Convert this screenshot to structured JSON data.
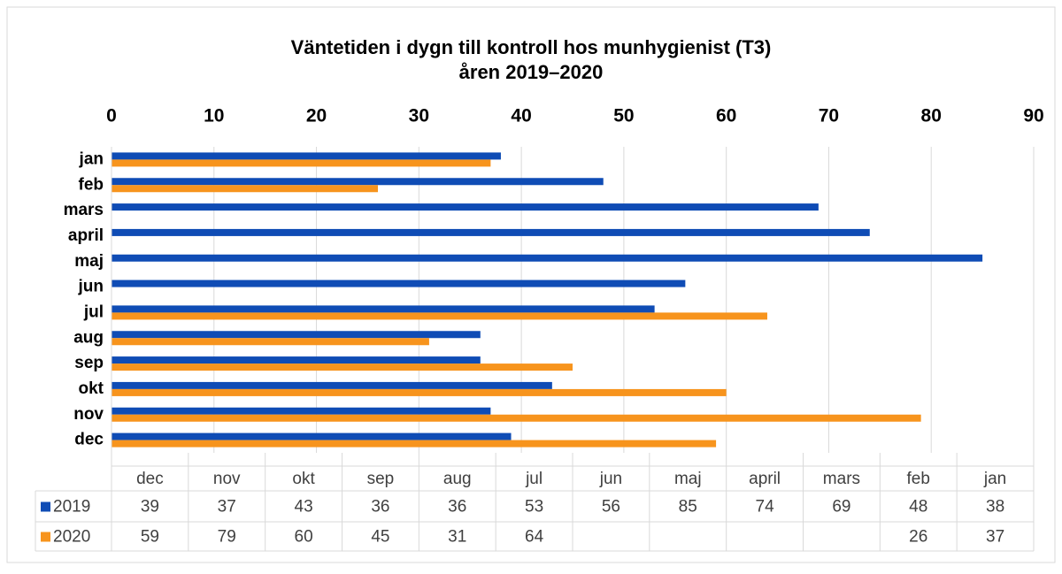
{
  "chart_data": {
    "type": "bar",
    "orientation": "horizontal",
    "title": "Väntetiden i dygn till kontroll hos munhygienist (T3)",
    "subtitle": "åren 2019–2020",
    "categories": [
      "jan",
      "feb",
      "mars",
      "april",
      "maj",
      "jun",
      "jul",
      "aug",
      "sep",
      "okt",
      "nov",
      "dec"
    ],
    "series": [
      {
        "name": "2019",
        "color": "#0f4cb5",
        "values": [
          38,
          48,
          69,
          74,
          85,
          56,
          53,
          36,
          36,
          43,
          37,
          39
        ]
      },
      {
        "name": "2020",
        "color": "#f7941d",
        "values": [
          37,
          26,
          null,
          null,
          null,
          null,
          64,
          31,
          45,
          60,
          79,
          59
        ]
      }
    ],
    "xlim": [
      0,
      90
    ],
    "xticks": [
      0,
      10,
      20,
      30,
      40,
      50,
      60,
      70,
      80,
      90
    ],
    "grid": true,
    "data_table": true
  }
}
